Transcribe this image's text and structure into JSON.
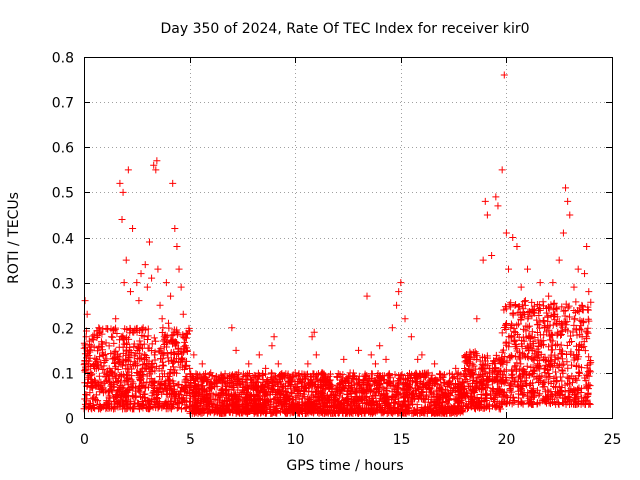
{
  "chart_data": {
    "type": "scatter",
    "title": "Day 350 of 2024, Rate Of TEC Index for receiver kir0",
    "xlabel": "GPS time / hours",
    "ylabel": "ROTI / TECUs",
    "xlim": [
      0,
      25
    ],
    "ylim": [
      0,
      0.8
    ],
    "xticks": [
      "0",
      "5",
      "10",
      "15",
      "20",
      "25"
    ],
    "yticks": [
      "0",
      "0.1",
      "0.2",
      "0.3",
      "0.4",
      "0.5",
      "0.6",
      "0.7",
      "0.8"
    ],
    "grid": true,
    "marker": "plus",
    "color": "#ff0000",
    "series": [
      {
        "x": [
          0.05,
          0.1,
          0.15,
          0.2,
          0.3,
          0.4,
          0.5,
          0.7,
          0.9,
          1.1,
          1.3,
          1.5,
          1.7,
          1.8,
          1.85,
          1.9,
          2.0,
          2.1,
          2.2,
          2.3,
          2.5,
          2.6,
          2.7,
          2.8,
          2.9,
          3.0,
          3.1,
          3.2,
          3.3,
          3.4,
          3.45,
          3.5,
          3.6,
          3.7,
          3.8,
          3.9,
          4.0,
          4.1,
          4.2,
          4.3,
          4.4,
          4.5,
          4.6,
          4.7,
          4.8,
          5.0,
          5.2,
          5.4,
          5.6,
          5.8,
          6.0,
          6.3,
          6.6,
          7.0,
          7.2,
          7.5,
          7.8,
          8.0,
          8.3,
          8.6,
          8.9,
          9.0,
          9.2,
          9.5,
          9.8,
          10.0,
          10.3,
          10.6,
          10.8,
          10.9,
          11.0,
          11.3,
          11.6,
          12.0,
          12.3,
          12.6,
          13.0,
          13.4,
          13.6,
          13.8,
          14.0,
          14.3,
          14.6,
          14.8,
          14.9,
          15.0,
          15.2,
          15.5,
          15.8,
          16.0,
          16.3,
          16.6,
          17.0,
          17.3,
          17.6,
          18.0,
          18.3,
          18.6,
          18.9,
          19.0,
          19.1,
          19.3,
          19.5,
          19.6,
          19.8,
          19.9,
          20.0,
          20.1,
          20.3,
          20.5,
          20.7,
          20.9,
          21.0,
          21.3,
          21.6,
          21.8,
          22.0,
          22.2,
          22.5,
          22.7,
          22.8,
          22.9,
          23.0,
          23.2,
          23.4,
          23.6,
          23.7,
          23.8,
          23.9
        ],
        "y": [
          0.26,
          0.18,
          0.23,
          0.12,
          0.15,
          0.08,
          0.11,
          0.2,
          0.14,
          0.1,
          0.18,
          0.22,
          0.52,
          0.44,
          0.5,
          0.3,
          0.35,
          0.55,
          0.28,
          0.42,
          0.3,
          0.26,
          0.32,
          0.2,
          0.34,
          0.29,
          0.39,
          0.31,
          0.56,
          0.55,
          0.57,
          0.33,
          0.25,
          0.22,
          0.18,
          0.3,
          0.21,
          0.27,
          0.52,
          0.42,
          0.38,
          0.33,
          0.29,
          0.23,
          0.16,
          0.11,
          0.14,
          0.09,
          0.12,
          0.08,
          0.1,
          0.07,
          0.09,
          0.2,
          0.15,
          0.08,
          0.12,
          0.09,
          0.14,
          0.11,
          0.16,
          0.18,
          0.12,
          0.09,
          0.08,
          0.1,
          0.07,
          0.12,
          0.18,
          0.19,
          0.14,
          0.1,
          0.08,
          0.09,
          0.13,
          0.1,
          0.15,
          0.27,
          0.14,
          0.12,
          0.16,
          0.13,
          0.2,
          0.25,
          0.28,
          0.3,
          0.22,
          0.18,
          0.13,
          0.14,
          0.1,
          0.12,
          0.09,
          0.08,
          0.11,
          0.07,
          0.13,
          0.22,
          0.35,
          0.48,
          0.45,
          0.36,
          0.49,
          0.47,
          0.55,
          0.76,
          0.41,
          0.33,
          0.4,
          0.38,
          0.29,
          0.26,
          0.33,
          0.24,
          0.3,
          0.2,
          0.27,
          0.3,
          0.35,
          0.41,
          0.51,
          0.48,
          0.45,
          0.29,
          0.33,
          0.24,
          0.32,
          0.38,
          0.28
        ],
        "noise_band": [
          {
            "x_from": 0,
            "x_to": 5,
            "y_from": 0.02,
            "y_to": 0.2
          },
          {
            "x_from": 5,
            "x_to": 18,
            "y_from": 0.01,
            "y_to": 0.1
          },
          {
            "x_from": 18,
            "x_to": 19.8,
            "y_from": 0.02,
            "y_to": 0.15
          },
          {
            "x_from": 19.8,
            "x_to": 24,
            "y_from": 0.03,
            "y_to": 0.26
          }
        ]
      }
    ]
  }
}
